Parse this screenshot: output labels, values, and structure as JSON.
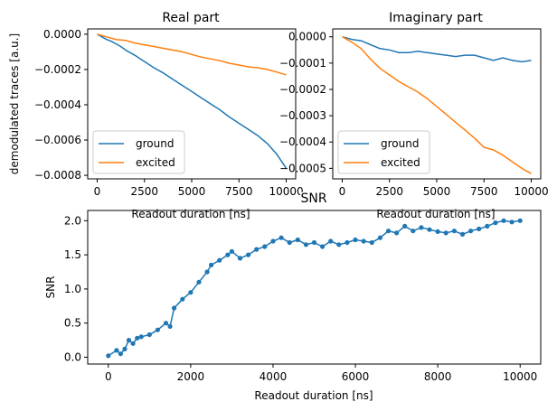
{
  "chart_data": [
    {
      "type": "line",
      "title": "Real part",
      "xlabel": "Readout duration [ns]",
      "ylabel": "demodulated traces [a.u.]",
      "xlim": [
        -500,
        10500
      ],
      "ylim": [
        -0.00082,
        3e-05
      ],
      "xticks": [
        0,
        2500,
        5000,
        7500,
        10000
      ],
      "xtick_labels": [
        "0",
        "2500",
        "5000",
        "7500",
        "10000"
      ],
      "yticks": [
        0.0,
        -0.0002,
        -0.0004,
        -0.0006,
        -0.0008
      ],
      "ytick_labels": [
        "0.0000",
        "−0.0002",
        "−0.0004",
        "−0.0006",
        "−0.0008"
      ],
      "legend": "lower-left",
      "grid": false,
      "series": [
        {
          "name": "ground",
          "color": "#1f77b4",
          "x": [
            0,
            250,
            500,
            750,
            1000,
            1250,
            1500,
            2000,
            2500,
            3000,
            3500,
            4000,
            4500,
            5000,
            5500,
            6000,
            6500,
            7000,
            7500,
            8000,
            8500,
            9000,
            9500,
            10000
          ],
          "y": [
            0.0,
            -1.5e-05,
            -3e-05,
            -4e-05,
            -5.5e-05,
            -7e-05,
            -9e-05,
            -0.00012,
            -0.000155,
            -0.00019,
            -0.00022,
            -0.000255,
            -0.00029,
            -0.000325,
            -0.00036,
            -0.000395,
            -0.00043,
            -0.00047,
            -0.000505,
            -0.00054,
            -0.000575,
            -0.00062,
            -0.00068,
            -0.00076
          ]
        },
        {
          "name": "excited",
          "color": "#ff7f0e",
          "x": [
            0,
            500,
            1000,
            1500,
            2000,
            2500,
            3000,
            3500,
            4000,
            4500,
            5000,
            5500,
            6000,
            6500,
            7000,
            7500,
            8000,
            8500,
            9000,
            9500,
            10000
          ],
          "y": [
            0.0,
            -1.5e-05,
            -3e-05,
            -3.5e-05,
            -5e-05,
            -6e-05,
            -7e-05,
            -8e-05,
            -9e-05,
            -0.0001,
            -0.000115,
            -0.00013,
            -0.00014,
            -0.00015,
            -0.000165,
            -0.000175,
            -0.000185,
            -0.00019,
            -0.0002,
            -0.000215,
            -0.00023
          ]
        }
      ]
    },
    {
      "type": "line",
      "title": "Imaginary part",
      "xlabel": "Readout duration [ns]",
      "ylabel": "",
      "xlim": [
        -500,
        10500
      ],
      "ylim": [
        -0.00054,
        3e-05
      ],
      "xticks": [
        0,
        2500,
        5000,
        7500,
        10000
      ],
      "xtick_labels": [
        "0",
        "2500",
        "5000",
        "7500",
        "10000"
      ],
      "yticks": [
        0.0,
        -0.0001,
        -0.0002,
        -0.0003,
        -0.0004,
        -0.0005
      ],
      "ytick_labels": [
        "0.0000",
        "−0.0001",
        "−0.0002",
        "−0.0003",
        "−0.0004",
        "−0.0005"
      ],
      "legend": "lower-left",
      "grid": false,
      "series": [
        {
          "name": "ground",
          "color": "#1f77b4",
          "x": [
            0,
            500,
            1000,
            1500,
            2000,
            2500,
            3000,
            3500,
            4000,
            4500,
            5000,
            5500,
            6000,
            6500,
            7000,
            7500,
            8000,
            8500,
            9000,
            9500,
            10000
          ],
          "y": [
            0.0,
            -1e-05,
            -1.5e-05,
            -3e-05,
            -4.5e-05,
            -5e-05,
            -6e-05,
            -6e-05,
            -5.5e-05,
            -6e-05,
            -6.5e-05,
            -7e-05,
            -7.5e-05,
            -7e-05,
            -7e-05,
            -8e-05,
            -9e-05,
            -8e-05,
            -9e-05,
            -9.5e-05,
            -9e-05
          ]
        },
        {
          "name": "excited",
          "color": "#ff7f0e",
          "x": [
            0,
            500,
            1000,
            1500,
            2000,
            2500,
            3000,
            3500,
            4000,
            4500,
            5000,
            5500,
            6000,
            6500,
            7000,
            7500,
            8000,
            8500,
            9000,
            9500,
            10000
          ],
          "y": [
            0.0,
            -2e-05,
            -4.5e-05,
            -8.5e-05,
            -0.00012,
            -0.000145,
            -0.00017,
            -0.00019,
            -0.00021,
            -0.000235,
            -0.000265,
            -0.000295,
            -0.000325,
            -0.000355,
            -0.000385,
            -0.00042,
            -0.00043,
            -0.00045,
            -0.000475,
            -0.0005,
            -0.00052
          ]
        }
      ]
    },
    {
      "type": "line",
      "title": "SNR",
      "xlabel": "Readout duration [ns]",
      "ylabel": "SNR",
      "xlim": [
        -500,
        10500
      ],
      "ylim": [
        -0.1,
        2.15
      ],
      "xticks": [
        0,
        2000,
        4000,
        6000,
        8000,
        10000
      ],
      "xtick_labels": [
        "0",
        "2000",
        "4000",
        "6000",
        "8000",
        "10000"
      ],
      "yticks": [
        0.0,
        0.5,
        1.0,
        1.5,
        2.0
      ],
      "ytick_labels": [
        "0.0",
        "0.5",
        "1.0",
        "1.5",
        "2.0"
      ],
      "grid": false,
      "marker": "dot",
      "series": [
        {
          "color": "#1f77b4",
          "x": [
            0,
            200,
            300,
            400,
            500,
            600,
            700,
            800,
            1000,
            1200,
            1400,
            1500,
            1600,
            1800,
            2000,
            2200,
            2400,
            2500,
            2700,
            2900,
            3000,
            3200,
            3400,
            3600,
            3800,
            4000,
            4200,
            4400,
            4600,
            4800,
            5000,
            5200,
            5400,
            5600,
            5800,
            6000,
            6200,
            6400,
            6600,
            6800,
            7000,
            7200,
            7400,
            7600,
            7800,
            8000,
            8200,
            8400,
            8600,
            8800,
            9000,
            9200,
            9400,
            9600,
            9800,
            10000
          ],
          "y": [
            0.02,
            0.1,
            0.05,
            0.12,
            0.25,
            0.2,
            0.28,
            0.3,
            0.33,
            0.4,
            0.5,
            0.45,
            0.72,
            0.85,
            0.95,
            1.1,
            1.25,
            1.35,
            1.42,
            1.5,
            1.55,
            1.45,
            1.5,
            1.58,
            1.62,
            1.7,
            1.75,
            1.68,
            1.72,
            1.65,
            1.68,
            1.62,
            1.7,
            1.65,
            1.68,
            1.72,
            1.7,
            1.68,
            1.75,
            1.85,
            1.82,
            1.92,
            1.85,
            1.9,
            1.87,
            1.84,
            1.82,
            1.85,
            1.8,
            1.85,
            1.88,
            1.92,
            1.97,
            2.0,
            1.98,
            2.0
          ]
        }
      ]
    }
  ]
}
